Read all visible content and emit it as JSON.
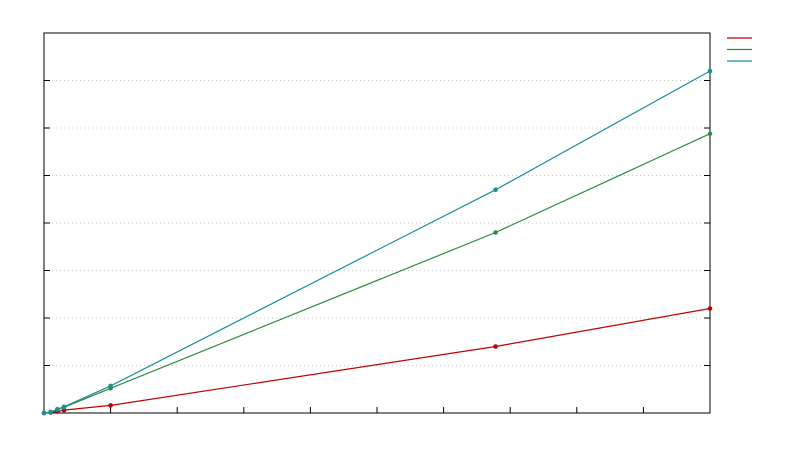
{
  "chart_data": {
    "type": "line",
    "title": "",
    "xlabel": "",
    "ylabel": "",
    "xlim": [
      0,
      100
    ],
    "ylim": [
      0,
      8
    ],
    "grid": {
      "y": true,
      "x": false
    },
    "legend_placement": "top-right",
    "series": [
      {
        "color": "#c00000",
        "x": [
          0,
          1,
          2,
          3,
          10,
          67.8,
          100
        ],
        "y": [
          0,
          0.01,
          0.03,
          0.06,
          0.16,
          1.4,
          2.2
        ]
      },
      {
        "color": "#2e8b40",
        "x": [
          0,
          1,
          2,
          3,
          10,
          67.8,
          100
        ],
        "y": [
          0,
          0.02,
          0.07,
          0.12,
          0.52,
          3.8,
          5.88
        ]
      },
      {
        "color": "#1a8f95",
        "x": [
          0,
          1,
          2,
          3,
          10,
          67.8,
          100
        ],
        "y": [
          0,
          0.02,
          0.08,
          0.13,
          0.57,
          4.7,
          7.2
        ]
      }
    ]
  }
}
